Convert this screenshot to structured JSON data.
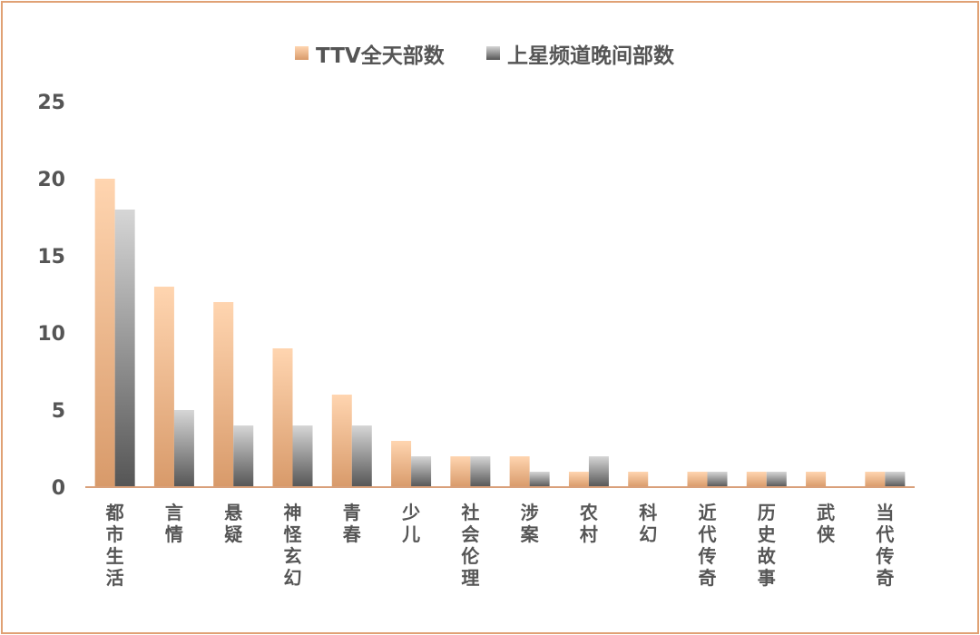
{
  "chart_data": {
    "type": "bar",
    "categories": [
      "都市生活",
      "言情",
      "悬疑",
      "神怪玄幻",
      "青春",
      "少儿",
      "社会伦理",
      "涉案",
      "农村",
      "科幻",
      "近代传奇",
      "历史故事",
      "武侠",
      "当代传奇"
    ],
    "series": [
      {
        "name": "TTV全天部数",
        "values": [
          20,
          13,
          12,
          9,
          6,
          3,
          2,
          2,
          1,
          1,
          1,
          1,
          1,
          1
        ]
      },
      {
        "name": "上星频道晚间部数",
        "values": [
          18,
          5,
          4,
          4,
          4,
          2,
          2,
          1,
          2,
          0,
          1,
          1,
          0,
          1
        ]
      }
    ],
    "title": "",
    "xlabel": "",
    "ylabel": "",
    "ylim": [
      0,
      25
    ],
    "yticks": [
      "0",
      "5",
      "10",
      "15",
      "20",
      "25"
    ],
    "grid": false,
    "legend_position": "top-center",
    "colors": {
      "series1_light": "#ffd5b0",
      "series1_dark": "#d89a6a",
      "series2_light": "#d6d6d6",
      "series2_dark": "#555555",
      "axis": "#d9a07a",
      "frame": "#e0a174",
      "text": "#555555"
    }
  }
}
